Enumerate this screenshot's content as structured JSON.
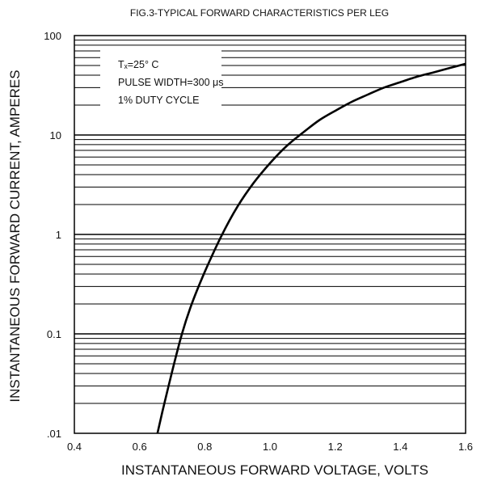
{
  "chart_data": {
    "type": "line",
    "title": "FIG.3-TYPICAL FORWARD CHARACTERISTICS PER LEG",
    "xlabel": "INSTANTANEOUS FORWARD VOLTAGE, VOLTS",
    "ylabel": "INSTANTANEOUS FORWARD CURRENT, AMPERES",
    "x_scale": "linear",
    "y_scale": "log",
    "xlim": [
      0.4,
      1.6
    ],
    "ylim": [
      0.01,
      100
    ],
    "x_ticks": [
      "0.4",
      "0.6",
      "0.8",
      "1.0",
      "1.2",
      "1.4",
      "1.6"
    ],
    "x_tick_values": [
      0.4,
      0.6,
      0.8,
      1.0,
      1.2,
      1.4,
      1.6
    ],
    "y_ticks": [
      ".01",
      "0.1",
      "1",
      "10",
      "100"
    ],
    "y_tick_values": [
      0.01,
      0.1,
      1,
      10,
      100
    ],
    "grid": true,
    "annotation": {
      "lines": [
        "Tₓ=25° C",
        "PULSE WIDTH=300 μs",
        "1% DUTY CYCLE"
      ]
    },
    "series": [
      {
        "x": [
          0.655,
          0.67,
          0.7,
          0.73,
          0.76,
          0.8,
          0.85,
          0.9,
          0.95,
          1.0,
          1.05,
          1.1,
          1.15,
          1.2,
          1.25,
          1.3,
          1.35,
          1.4,
          1.45,
          1.5,
          1.55,
          1.6
        ],
        "y": [
          0.01,
          0.0165,
          0.042,
          0.1,
          0.2,
          0.42,
          0.95,
          1.9,
          3.3,
          5.2,
          7.7,
          10.5,
          14.0,
          17.5,
          21.5,
          25.5,
          30.0,
          34.0,
          38.5,
          42.5,
          47.0,
          52.0
        ]
      }
    ]
  }
}
